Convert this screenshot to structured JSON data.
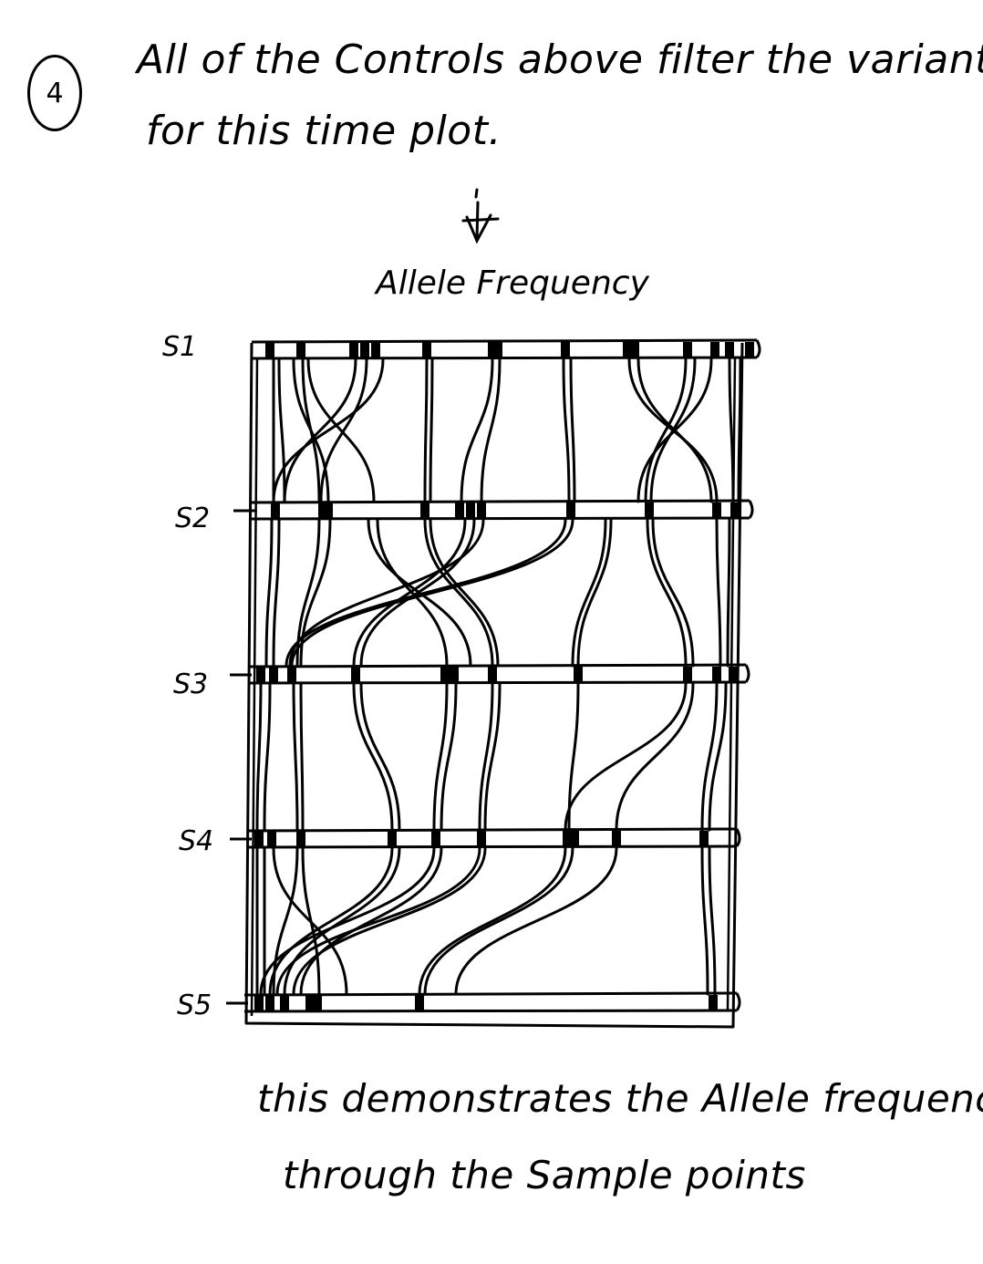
{
  "header": {
    "step_number": "4",
    "intro_line1": "All of the Controls above filter the variants",
    "intro_line2": "for this time plot."
  },
  "diagram": {
    "title": "Allele Frequency",
    "samples": [
      "S1",
      "S2",
      "S3",
      "S4",
      "S5"
    ]
  },
  "footer": {
    "line1": "this demonstrates the Allele frequency",
    "line2": "through the Sample points"
  }
}
